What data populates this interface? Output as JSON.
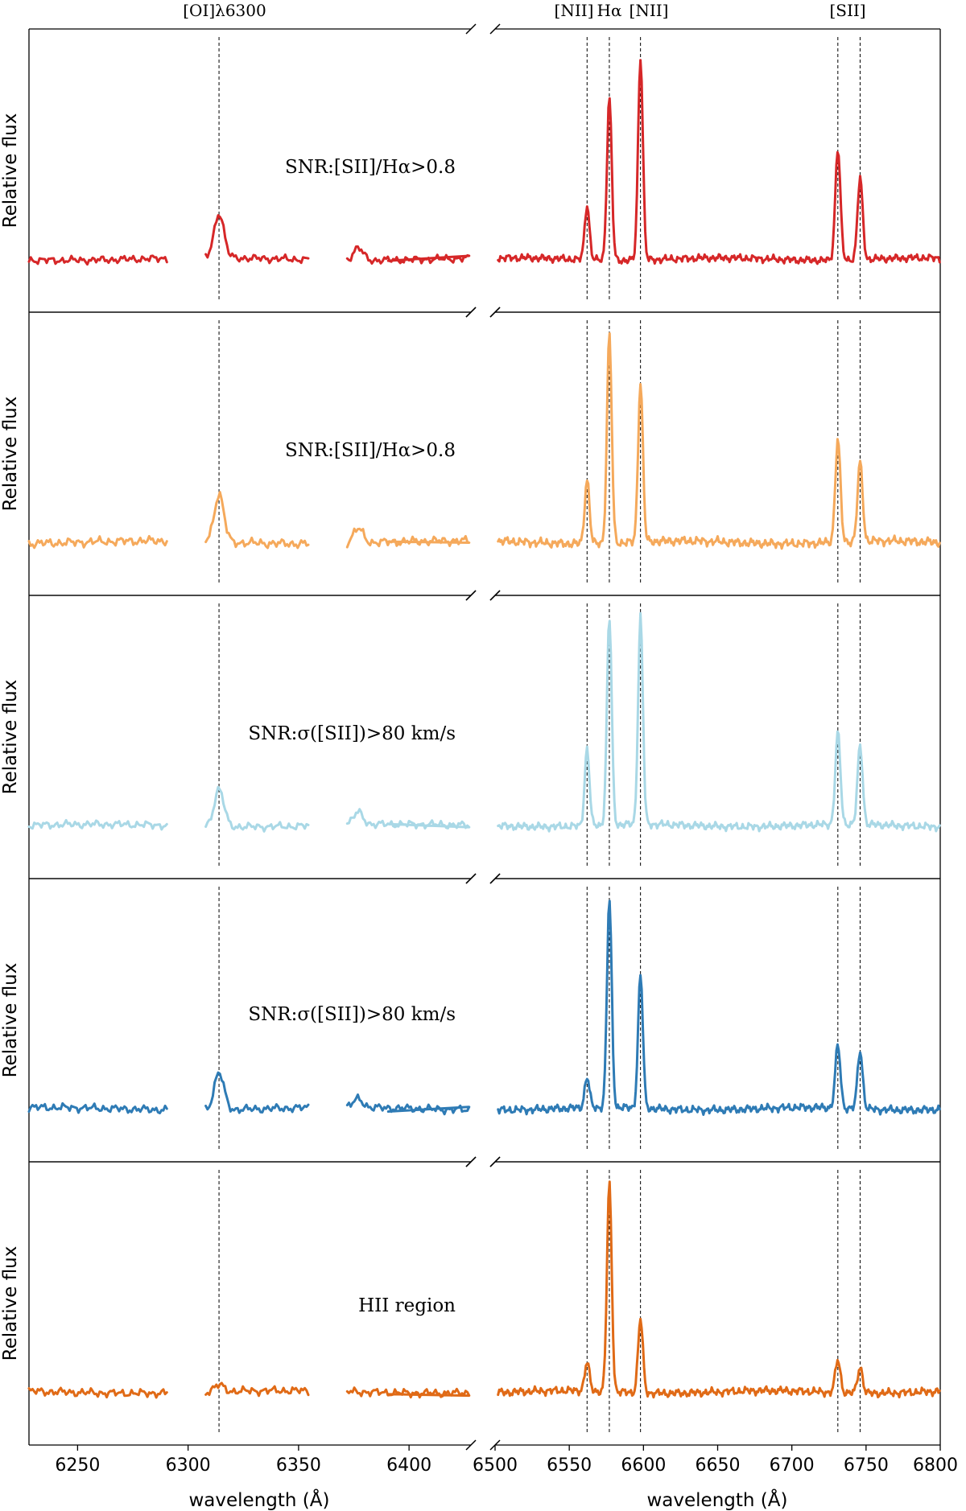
{
  "chart_data": {
    "type": "line",
    "x_axis": {
      "left_range": [
        6228,
        6428
      ],
      "right_range": [
        6500,
        6800
      ],
      "left_ticks": [
        6250,
        6300,
        6350,
        6400
      ],
      "right_ticks": [
        6500,
        6550,
        6600,
        6650,
        6700,
        6750,
        6800
      ],
      "xlabel": "wavelength (Å)"
    },
    "ylabel": "Relative flux",
    "lines": [
      {
        "name": "oi",
        "label": "[OI]λ6300",
        "x": 6314
      },
      {
        "name": "nii-a",
        "label": "[NII]",
        "x": 6562
      },
      {
        "name": "halpha",
        "label": "Hα",
        "x": 6577
      },
      {
        "name": "nii-b",
        "label": "[NII]",
        "x": 6598
      },
      {
        "name": "sii-a",
        "label": "[SII]",
        "x": 6731
      },
      {
        "name": "sii-b",
        "label": "",
        "x": 6746
      }
    ],
    "top_label_sii": "[SII]",
    "gaps": [
      [
        6291,
        6308
      ],
      [
        6355,
        6372
      ]
    ],
    "panels": [
      {
        "label": "SNR:[SII]/Hα>0.8",
        "color": "#d62728",
        "width": 2.0,
        "ymax": 1.02,
        "amps": {
          "oi": 0.22,
          "ohump": 0.06,
          "nii_a": 0.27,
          "ha": 0.8,
          "nii_b": 1.0,
          "sii_a": 0.55,
          "sii_b": 0.4
        }
      },
      {
        "label": "SNR:[SII]/Hα>0.8",
        "color": "#f5a95b",
        "width": 2.5,
        "ymax": 0.87,
        "amps": {
          "oi": 0.2,
          "ohump": 0.06,
          "nii_a": 0.27,
          "ha": 0.87,
          "nii_b": 0.67,
          "sii_a": 0.43,
          "sii_b": 0.33
        }
      },
      {
        "label": "SNR:σ([SII])>80 km/s",
        "color": "#a9d8e6",
        "width": 3.3,
        "ymax": 1.0,
        "amps": {
          "oi": 0.18,
          "ohump": 0.06,
          "nii_a": 0.37,
          "ha": 1.0,
          "nii_b": 1.0,
          "sii_a": 0.44,
          "sii_b": 0.38
        }
      },
      {
        "label": "SNR:σ([SII])>80 km/s",
        "color": "#2e7bb5",
        "width": 2.5,
        "ymax": 0.96,
        "amps": {
          "oi": 0.17,
          "ohump": 0.04,
          "nii_a": 0.14,
          "ha": 0.96,
          "nii_b": 0.62,
          "sii_a": 0.29,
          "sii_b": 0.27
        }
      },
      {
        "label": "HII region",
        "color": "#e06a16",
        "width": 2.5,
        "ymax": 0.95,
        "amps": {
          "oi": 0.03,
          "ohump": 0.0,
          "nii_a": 0.13,
          "ha": 0.95,
          "nii_b": 0.34,
          "sii_a": 0.15,
          "sii_b": 0.12
        }
      }
    ]
  }
}
